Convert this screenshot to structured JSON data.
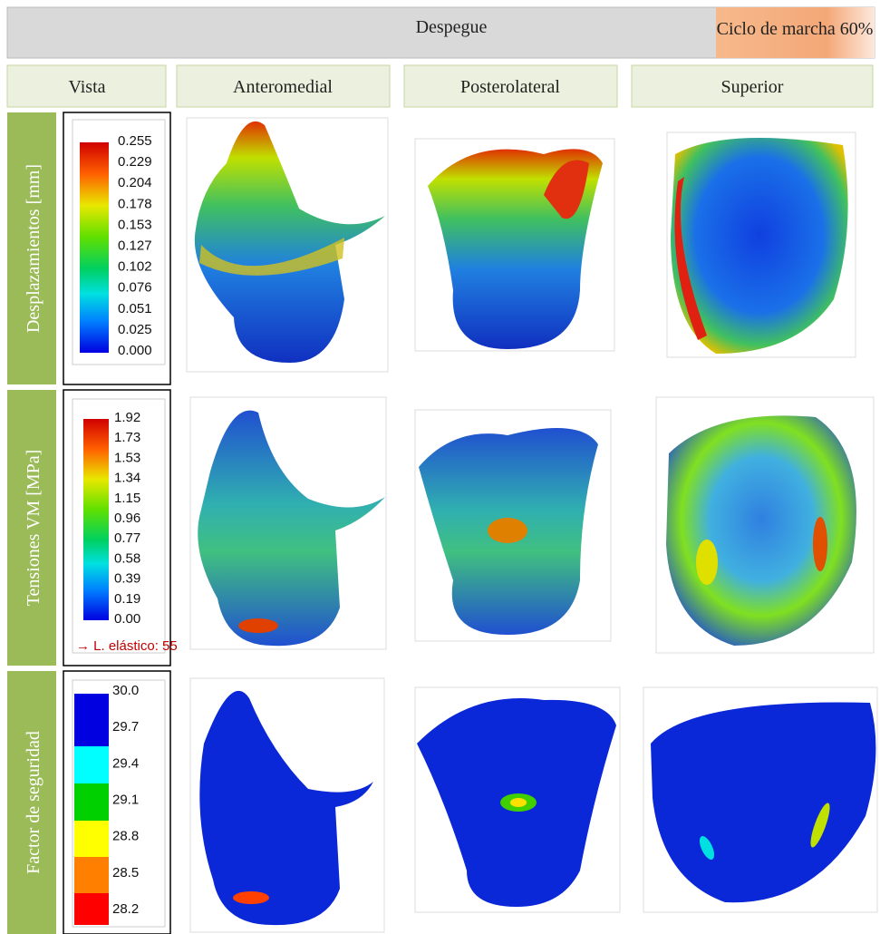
{
  "header": {
    "title": "Despegue",
    "badge": "Ciclo de marcha 60%"
  },
  "columns": [
    "Vista",
    "Anteromedial",
    "Posterolateral",
    "Superior"
  ],
  "rows": [
    {
      "label": "Desplazamientos [mm]",
      "legend": {
        "ticks": [
          "0.255",
          "0.229",
          "0.204",
          "0.178",
          "0.153",
          "0.127",
          "0.102",
          "0.076",
          "0.051",
          "0.025",
          "0.000"
        ]
      }
    },
    {
      "label": "Tensiones VM [MPa]",
      "legend": {
        "ticks": [
          "1.92",
          "1.73",
          "1.53",
          "1.34",
          "1.15",
          "0.96",
          "0.77",
          "0.58",
          "0.39",
          "0.19",
          "0.00"
        ],
        "note": "→ L. elástico: 55"
      }
    },
    {
      "label": "Factor de seguridad",
      "legend": {
        "ticks": [
          "30.0",
          "29.7",
          "29.4",
          "29.1",
          "28.8",
          "28.5",
          "28.2"
        ]
      }
    }
  ]
}
